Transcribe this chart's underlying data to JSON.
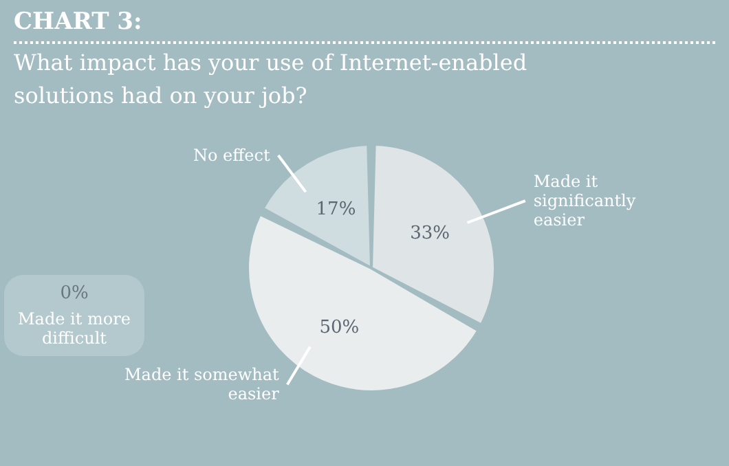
{
  "chart_data": {
    "type": "pie",
    "title": "CHART 3:",
    "subtitle": "What impact has your use of Internet-enabled solutions had on your job?",
    "categories": [
      "No effect",
      "Made it significantly easier",
      "Made it somewhat easier",
      "Made it more difficult"
    ],
    "values": [
      17,
      33,
      50,
      0
    ],
    "colors": [
      "#cfdce0",
      "#dfe4e6",
      "#e9edee",
      "#b4c9cd"
    ],
    "value_labels": [
      "17%",
      "33%",
      "50%",
      "0%"
    ]
  }
}
